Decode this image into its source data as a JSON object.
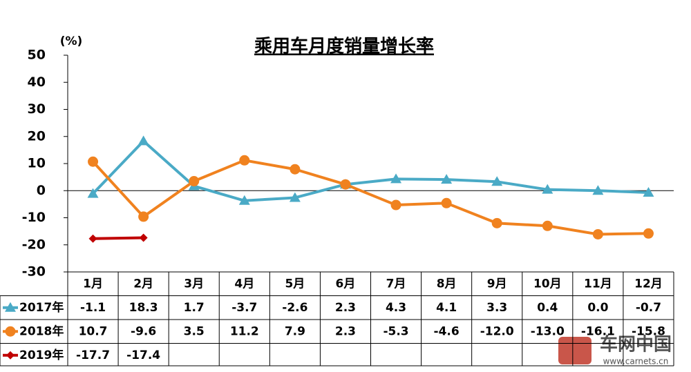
{
  "chart_data": {
    "type": "line",
    "title": "乘用车月度销量增长率",
    "ylabel": "(%)",
    "categories": [
      "1月",
      "2月",
      "3月",
      "4月",
      "5月",
      "6月",
      "7月",
      "8月",
      "9月",
      "10月",
      "11月",
      "12月"
    ],
    "series": [
      {
        "name": "2017年",
        "color": "#4aaac6",
        "marker": "triangle",
        "values": [
          -1.1,
          18.3,
          1.7,
          -3.7,
          -2.6,
          2.3,
          4.3,
          4.1,
          3.3,
          0.4,
          0.0,
          -0.7
        ],
        "value_labels": [
          "-1.1",
          "18.3",
          "1.7",
          "-3.7",
          "-2.6",
          "2.3",
          "4.3",
          "4.1",
          "3.3",
          "0.4",
          "0.0",
          "-0.7"
        ]
      },
      {
        "name": "2018年",
        "color": "#f0821f",
        "marker": "circle",
        "values": [
          10.7,
          -9.6,
          3.5,
          11.2,
          7.9,
          2.3,
          -5.3,
          -4.6,
          -12.0,
          -13.0,
          -16.1,
          -15.8
        ],
        "value_labels": [
          "10.7",
          "-9.6",
          "3.5",
          "11.2",
          "7.9",
          "2.3",
          "-5.3",
          "-4.6",
          "-12.0",
          "-13.0",
          "-16.1",
          "-15.8"
        ]
      },
      {
        "name": "2019年",
        "color": "#c00000",
        "marker": "diamond",
        "values": [
          -17.7,
          -17.4,
          null,
          null,
          null,
          null,
          null,
          null,
          null,
          null,
          null,
          null
        ],
        "value_labels": [
          "-17.7",
          "-17.4",
          null,
          null,
          null,
          null,
          null,
          null,
          null,
          null,
          null,
          null
        ]
      }
    ],
    "ylim": [
      -30,
      50
    ],
    "yticks": [
      -30,
      -20,
      -10,
      0,
      10,
      20,
      30,
      40,
      50
    ],
    "watermark": {
      "text": "车网中国",
      "url": "www.carnets.cn"
    }
  }
}
